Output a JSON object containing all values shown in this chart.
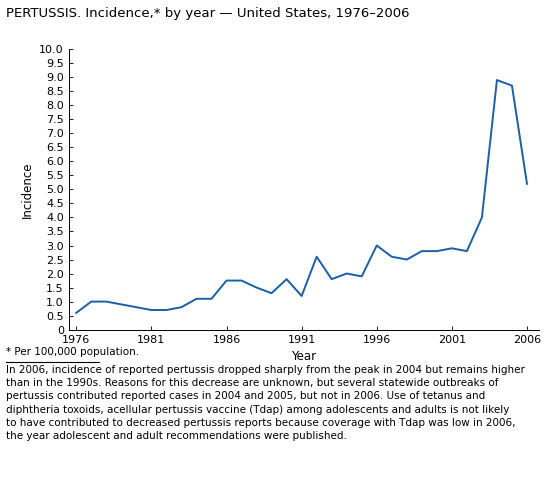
{
  "title": "PERTUSSIS. Incidence,* by year — United States, 1976–2006",
  "xlabel": "Year",
  "ylabel": "Incidence",
  "line_color": "#1a5fa8",
  "line_width": 1.4,
  "background_color": "#ffffff",
  "ylim": [
    0,
    10.0
  ],
  "yticks": [
    0,
    0.5,
    1.0,
    1.5,
    2.0,
    2.5,
    3.0,
    3.5,
    4.0,
    4.5,
    5.0,
    5.5,
    6.0,
    6.5,
    7.0,
    7.5,
    8.0,
    8.5,
    9.0,
    9.5,
    10.0
  ],
  "ytick_labels": [
    "0",
    "0.5",
    "1.0",
    "1.5",
    "2.0",
    "2.5",
    "3.0",
    "3.5",
    "4.0",
    "4.5",
    "5.0",
    "5.5",
    "6.0",
    "6.5",
    "7.0",
    "7.5",
    "8.0",
    "8.5",
    "9.0",
    "9.5",
    "10.0"
  ],
  "xticks": [
    1976,
    1981,
    1986,
    1991,
    1996,
    2001,
    2006
  ],
  "xlim": [
    1975.5,
    2006.8
  ],
  "years": [
    1976,
    1977,
    1978,
    1979,
    1980,
    1981,
    1982,
    1983,
    1984,
    1985,
    1986,
    1987,
    1988,
    1989,
    1990,
    1991,
    1992,
    1993,
    1994,
    1995,
    1996,
    1997,
    1998,
    1999,
    2000,
    2001,
    2002,
    2003,
    2004,
    2005,
    2006
  ],
  "values": [
    0.6,
    1.0,
    1.0,
    0.9,
    0.8,
    0.7,
    0.7,
    0.8,
    1.1,
    1.1,
    1.75,
    1.75,
    1.5,
    1.3,
    1.8,
    1.2,
    2.6,
    1.8,
    2.0,
    1.9,
    3.0,
    2.6,
    2.5,
    2.8,
    2.8,
    2.9,
    2.8,
    4.0,
    8.9,
    8.7,
    5.2
  ],
  "footnote_star": "* Per 100,000 population.",
  "footnote_text": "In 2006, incidence of reported pertussis dropped sharply from the peak in 2004 but remains higher\nthan in the 1990s. Reasons for this decrease are unknown, but several statewide outbreaks of\npertussis contributed reported cases in 2004 and 2005, but not in 2006. Use of tetanus and\ndiphtheria toxoids, acellular pertussis vaccine (Tdap) among adolescents and adults is not likely\nto have contributed to decreased pertussis reports because coverage with Tdap was low in 2006,\nthe year adolescent and adult recommendations were published.",
  "title_fontsize": 9.5,
  "axis_label_fontsize": 8.5,
  "tick_fontsize": 8,
  "footnote_fontsize": 7.5
}
